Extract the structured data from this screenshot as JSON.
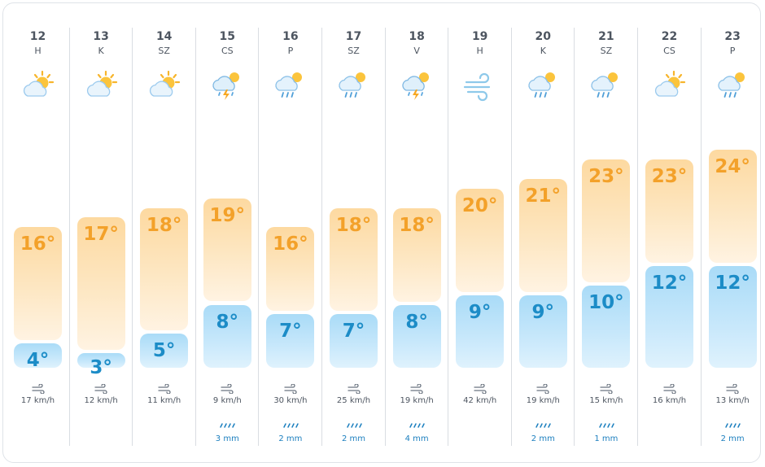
{
  "forecast": [
    {
      "date": "12",
      "dow": "H",
      "icon": "partly-cloudy-icon",
      "high": 16,
      "low": 4,
      "high_label": "16°",
      "low_label": "4°",
      "wind": "17 km/h",
      "rain": ""
    },
    {
      "date": "13",
      "dow": "K",
      "icon": "partly-cloudy-icon",
      "high": 17,
      "low": 3,
      "high_label": "17°",
      "low_label": "3°",
      "wind": "12 km/h",
      "rain": ""
    },
    {
      "date": "14",
      "dow": "SZ",
      "icon": "partly-cloudy-icon",
      "high": 18,
      "low": 5,
      "high_label": "18°",
      "low_label": "5°",
      "wind": "11 km/h",
      "rain": ""
    },
    {
      "date": "15",
      "dow": "CS",
      "icon": "thunderstorm-icon",
      "high": 19,
      "low": 8,
      "high_label": "19°",
      "low_label": "8°",
      "wind": "9 km/h",
      "rain": "3 mm"
    },
    {
      "date": "16",
      "dow": "P",
      "icon": "rain-sun-icon",
      "high": 16,
      "low": 7,
      "high_label": "16°",
      "low_label": "7°",
      "wind": "30 km/h",
      "rain": "2 mm"
    },
    {
      "date": "17",
      "dow": "SZ",
      "icon": "rain-sun-icon",
      "high": 18,
      "low": 7,
      "high_label": "18°",
      "low_label": "7°",
      "wind": "25 km/h",
      "rain": "2 mm"
    },
    {
      "date": "18",
      "dow": "V",
      "icon": "thunderstorm-icon",
      "high": 18,
      "low": 8,
      "high_label": "18°",
      "low_label": "8°",
      "wind": "19 km/h",
      "rain": "4 mm"
    },
    {
      "date": "19",
      "dow": "H",
      "icon": "wind-icon",
      "high": 20,
      "low": 9,
      "high_label": "20°",
      "low_label": "9°",
      "wind": "42 km/h",
      "rain": ""
    },
    {
      "date": "20",
      "dow": "K",
      "icon": "rain-sun-icon",
      "high": 21,
      "low": 9,
      "high_label": "21°",
      "low_label": "9°",
      "wind": "19 km/h",
      "rain": "2 mm"
    },
    {
      "date": "21",
      "dow": "SZ",
      "icon": "rain-sun-icon",
      "high": 23,
      "low": 10,
      "high_label": "23°",
      "low_label": "10°",
      "wind": "15 km/h",
      "rain": "1 mm"
    },
    {
      "date": "22",
      "dow": "CS",
      "icon": "partly-cloudy-icon",
      "high": 23,
      "low": 12,
      "high_label": "23°",
      "low_label": "12°",
      "wind": "16 km/h",
      "rain": ""
    },
    {
      "date": "23",
      "dow": "P",
      "icon": "rain-sun-icon",
      "high": 24,
      "low": 12,
      "high_label": "24°",
      "low_label": "12°",
      "wind": "13 km/h",
      "rain": "2 mm"
    }
  ],
  "colors": {
    "high_text": "#f3a12a",
    "low_text": "#1c8cc7",
    "rain_text": "#1c7fbf",
    "separator": "#d9dde2"
  }
}
